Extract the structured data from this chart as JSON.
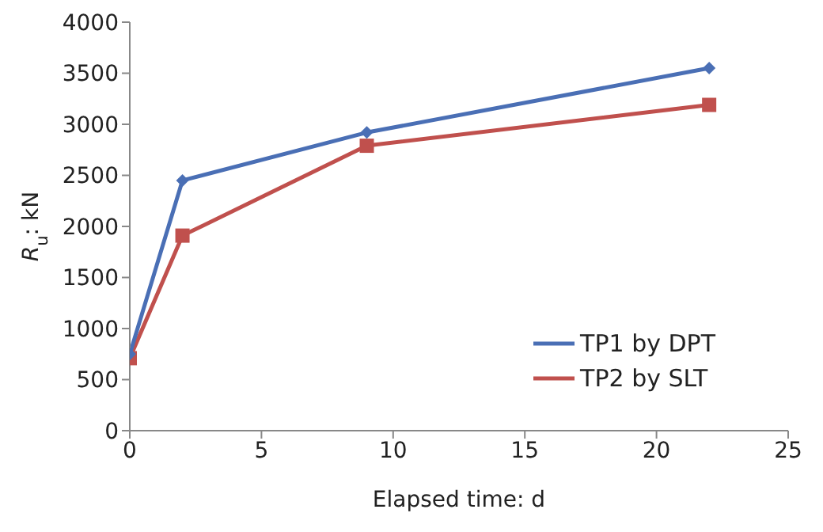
{
  "chart_data": {
    "type": "line",
    "xlabel": "Elapsed time: d",
    "ylabel": "R$_{u}$: kN",
    "x": [
      0,
      2,
      9,
      22
    ],
    "series": [
      {
        "name": "TP1 by DPT",
        "color": "#4a6fb5",
        "values": [
          750,
          2450,
          2920,
          3550
        ],
        "marker": "diamond"
      },
      {
        "name": "TP2 by SLT",
        "color": "#c0504d",
        "values": [
          710,
          1910,
          2790,
          3190
        ],
        "marker": "square"
      }
    ],
    "xlim": [
      0,
      25
    ],
    "xticks": [
      0,
      5,
      10,
      15,
      20,
      25
    ],
    "ylim": [
      0,
      4000
    ],
    "yticks": [
      0,
      500,
      1000,
      1500,
      2000,
      2500,
      3000,
      3500,
      4000
    ],
    "grid": false,
    "legend": "bottom right",
    "line_style": "solid"
  }
}
